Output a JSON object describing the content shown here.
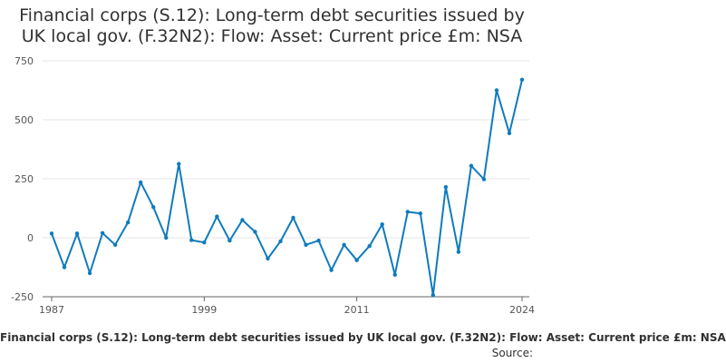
{
  "chart_data": {
    "type": "line",
    "title_line1": "Financial corps (S.12): Long-term debt securities issued by",
    "title_line2": "UK local gov. (F.32N2): Flow: Asset: Current price £m: NSA",
    "caption": "Financial corps (S.12): Long-term debt securities issued by UK local gov. (F.32N2): Flow: Asset: Current price £m: NSA",
    "source_label": "Source:",
    "x": [
      1987,
      1988,
      1989,
      1990,
      1991,
      1992,
      1993,
      1994,
      1995,
      1996,
      1997,
      1998,
      1999,
      2000,
      2001,
      2002,
      2003,
      2004,
      2005,
      2006,
      2007,
      2008,
      2009,
      2010,
      2011,
      2012,
      2013,
      2014,
      2015,
      2016,
      2017,
      2018,
      2019,
      2020,
      2021,
      2022,
      2023,
      2024
    ],
    "series": [
      {
        "values": [
          18,
          -125,
          18,
          -150,
          20,
          -30,
          65,
          235,
          130,
          0,
          313,
          -10,
          -20,
          90,
          -12,
          75,
          25,
          -88,
          -15,
          85,
          -30,
          -12,
          -137,
          -30,
          -95,
          -35,
          57,
          -157,
          110,
          103,
          -243,
          215,
          -60,
          305,
          248,
          625,
          443,
          670
        ]
      }
    ],
    "ylim": [
      -250,
      750
    ],
    "yticks": [
      -250,
      0,
      250,
      500,
      750
    ],
    "xticks": [
      1987,
      1999,
      2011,
      2024
    ],
    "xlim": [
      1987,
      2024
    ],
    "grid": true,
    "line_color": "#0f7bbd",
    "grid_color": "#e4e4e4",
    "axis_color": "#666666"
  }
}
